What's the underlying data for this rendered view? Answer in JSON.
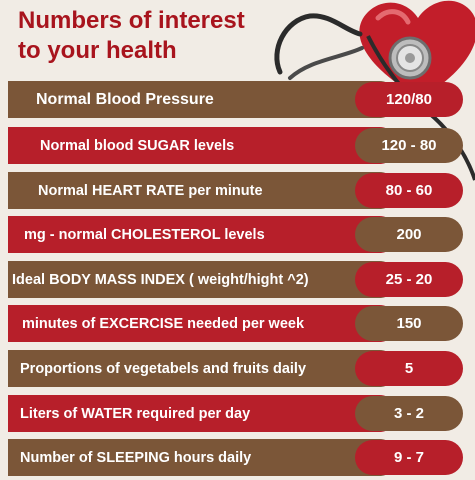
{
  "title": {
    "line1": "Numbers of interest",
    "line2": "to your health"
  },
  "colors": {
    "title": "#a8141d",
    "brown": "#7b5638",
    "red": "#b71f2a",
    "background": "#f1ece5"
  },
  "icons": [
    "heart-icon",
    "stethoscope-icon"
  ],
  "rows": [
    {
      "label": "Normal Blood Pressure",
      "value": "120/80",
      "bar": "brown",
      "pill": "red"
    },
    {
      "label": "Normal blood SUGAR levels",
      "value": "120 - 80",
      "bar": "red",
      "pill": "brown"
    },
    {
      "label": "Normal HEART RATE per minute",
      "value": "80 - 60",
      "bar": "brown",
      "pill": "red"
    },
    {
      "label": "mg - normal CHOLESTEROL levels",
      "value": "200",
      "bar": "red",
      "pill": "brown"
    },
    {
      "label": "Ideal BODY MASS INDEX ( weight/hight ^2)",
      "value": "25 - 20",
      "bar": "brown",
      "pill": "red"
    },
    {
      "label": "minutes of EXCERCISE needed per week",
      "value": "150",
      "bar": "red",
      "pill": "brown"
    },
    {
      "label": "Proportions of vegetabels and fruits daily",
      "value": "5",
      "bar": "brown",
      "pill": "red"
    },
    {
      "label": "Liters of WATER required per day",
      "value": "3 - 2",
      "bar": "red",
      "pill": "brown"
    },
    {
      "label": "Number of SLEEPING hours daily",
      "value": "9 - 7",
      "bar": "brown",
      "pill": "red"
    }
  ]
}
